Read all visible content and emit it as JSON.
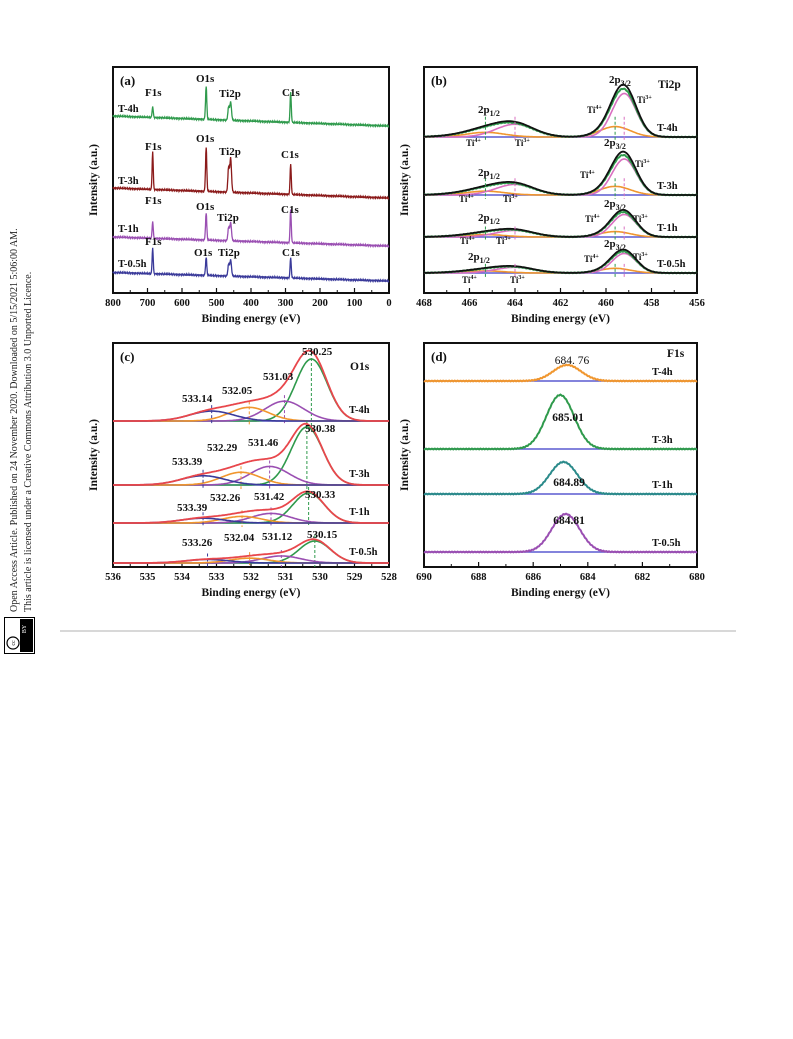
{
  "sidebar": {
    "line1": "Open Access Article. Published on 24 November 2020. Downloaded on 5/15/2021 5:06:00 AM.",
    "line2": "This article is licensed under a Creative Commons Attribution 3.0 Unported Licence.",
    "badge_cc": "cc",
    "badge_by": "BY"
  },
  "colors": {
    "green": "#2f9a4c",
    "darkred": "#8b1a1a",
    "purple": "#9a4fb2",
    "navy": "#3a3a9a",
    "orange": "#f0962e",
    "black": "#111111",
    "teal": "#2a8a8a",
    "red": "#e8474c",
    "pink": "#d96fc0",
    "blue": "#5a5ad0"
  },
  "chart_data": [
    {
      "panel": "(a)",
      "type": "line",
      "xlabel": "Binding energy (eV)",
      "ylabel": "Intensity (a.u.)",
      "xlim": [
        800,
        0
      ],
      "xticks": [
        "800",
        "700",
        "600",
        "500",
        "400",
        "300",
        "200",
        "100",
        "0"
      ],
      "series": [
        {
          "name": "T-4h",
          "color": "green",
          "peaks": {
            "F1s": 685,
            "O1s": 530,
            "Ti2p": 459,
            "C1s": 285
          }
        },
        {
          "name": "T-3h",
          "color": "darkred",
          "peaks": {
            "F1s": 685,
            "O1s": 530,
            "Ti2p": 459,
            "C1s": 285
          }
        },
        {
          "name": "T-1h",
          "color": "purple",
          "peaks": {
            "F1s": 685,
            "O1s": 530,
            "Ti2p": 459,
            "C1s": 285
          }
        },
        {
          "name": "T-0.5h",
          "color": "navy",
          "peaks": {
            "F1s": 685,
            "O1s": 530,
            "Ti2p": 459,
            "C1s": 285
          }
        }
      ],
      "peak_labels": [
        "F1s",
        "O1s",
        "Ti2p",
        "C1s"
      ]
    },
    {
      "panel": "(b)",
      "type": "line",
      "title": "Ti2p",
      "xlabel": "Binding energy (eV)",
      "ylabel": "Intensity (a.u.)",
      "xlim": [
        468,
        456
      ],
      "xticks": [
        "468",
        "466",
        "464",
        "462",
        "460",
        "458",
        "456"
      ],
      "series": [
        "T-4h",
        "T-3h",
        "T-1h",
        "T-0.5h"
      ],
      "peak_labels": {
        "p12": "2p1/2",
        "p32": "2p3/2",
        "ti4": "Ti4+",
        "ti3": "Ti3+"
      },
      "components": {
        "p32_ti4": 459.6,
        "p32_ti3": 459.2,
        "p12_ti4": 465.3,
        "p12_ti3": 464.0
      }
    },
    {
      "panel": "(c)",
      "type": "line",
      "title": "O1s",
      "xlabel": "Binding energy (eV)",
      "ylabel": "Intensity (a.u.)",
      "xlim": [
        536,
        528
      ],
      "xticks": [
        "536",
        "535",
        "534",
        "533",
        "532",
        "531",
        "530",
        "529",
        "528"
      ],
      "series": [
        {
          "name": "T-4h",
          "peaks": [
            "533.14",
            "532.05",
            "531.03",
            "530.25"
          ]
        },
        {
          "name": "T-3h",
          "peaks": [
            "533.39",
            "532.29",
            "531.46",
            "530.38"
          ]
        },
        {
          "name": "T-1h",
          "peaks": [
            "533.39",
            "532.26",
            "531.42",
            "530.33"
          ]
        },
        {
          "name": "T-0.5h",
          "peaks": [
            "533.26",
            "532.04",
            "531.12",
            "530.15"
          ]
        }
      ]
    },
    {
      "panel": "(d)",
      "type": "line",
      "title": "F1s",
      "xlabel": "Binding energy (eV)",
      "ylabel": "Intensity (a.u.)",
      "xlim": [
        690,
        680
      ],
      "xticks": [
        "690",
        "688",
        "686",
        "684",
        "682",
        "680"
      ],
      "series": [
        {
          "name": "T-4h",
          "peak": "684. 76",
          "color": "orange"
        },
        {
          "name": "T-3h",
          "peak": "685.01",
          "color": "green"
        },
        {
          "name": "T-1h",
          "peak": "684.89",
          "color": "teal"
        },
        {
          "name": "T-0.5h",
          "peak": "684.81",
          "color": "purple"
        }
      ]
    }
  ]
}
